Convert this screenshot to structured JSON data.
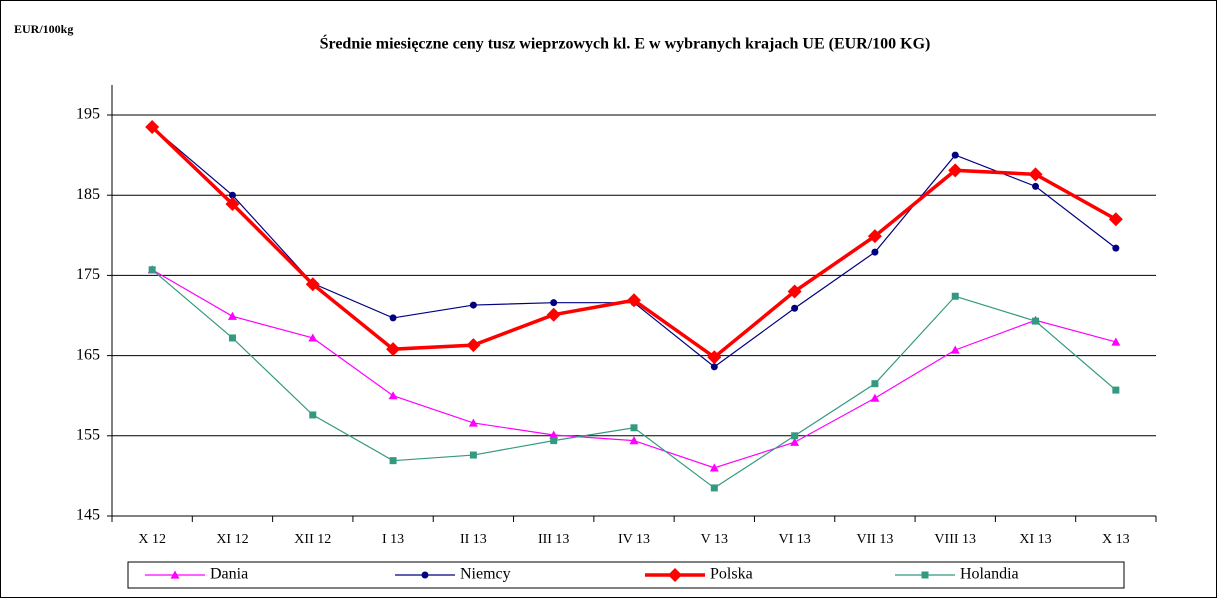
{
  "chart_data": {
    "type": "line",
    "title": "Średnie miesięczne ceny tusz wieprzowych kl. E w wybranych krajach UE (EUR/100 KG)",
    "y_label": "EUR/100kg",
    "categories": [
      "X 12",
      "XI 12",
      "XII 12",
      "I 13",
      "II 13",
      "III 13",
      "IV 13",
      "V 13",
      "VI 13",
      "VII 13",
      "VIII 13",
      "XI 13",
      "X 13"
    ],
    "series": [
      {
        "name": "Dania",
        "color": "#ff00ff",
        "marker": "triangle",
        "values": [
          175.7,
          169.9,
          167.2,
          160,
          156.6,
          155.1,
          154.4,
          151,
          154.2,
          159.7,
          165.7,
          169.4,
          166.7
        ]
      },
      {
        "name": "Niemcy",
        "color": "#000080",
        "marker": "circle",
        "values": [
          193.5,
          185,
          174,
          169.7,
          171.3,
          171.6,
          171.6,
          163.6,
          170.9,
          177.9,
          190,
          186.1,
          178.4
        ]
      },
      {
        "name": "Polska",
        "color": "#ff0000",
        "marker": "diamond",
        "values": [
          193.5,
          183.9,
          173.9,
          165.8,
          166.3,
          170.1,
          171.9,
          164.8,
          173,
          179.9,
          188.1,
          187.6,
          182
        ]
      },
      {
        "name": "Holandia",
        "color": "#339980",
        "marker": "square",
        "values": [
          175.7,
          167.2,
          157.6,
          151.9,
          152.6,
          154.4,
          156,
          148.5,
          155,
          161.5,
          172.4,
          169.3,
          160.7
        ]
      }
    ],
    "ylim": [
      145,
      195
    ],
    "yticks": [
      145,
      155,
      165,
      175,
      185,
      195
    ],
    "grid": true,
    "legend": "bottom"
  }
}
